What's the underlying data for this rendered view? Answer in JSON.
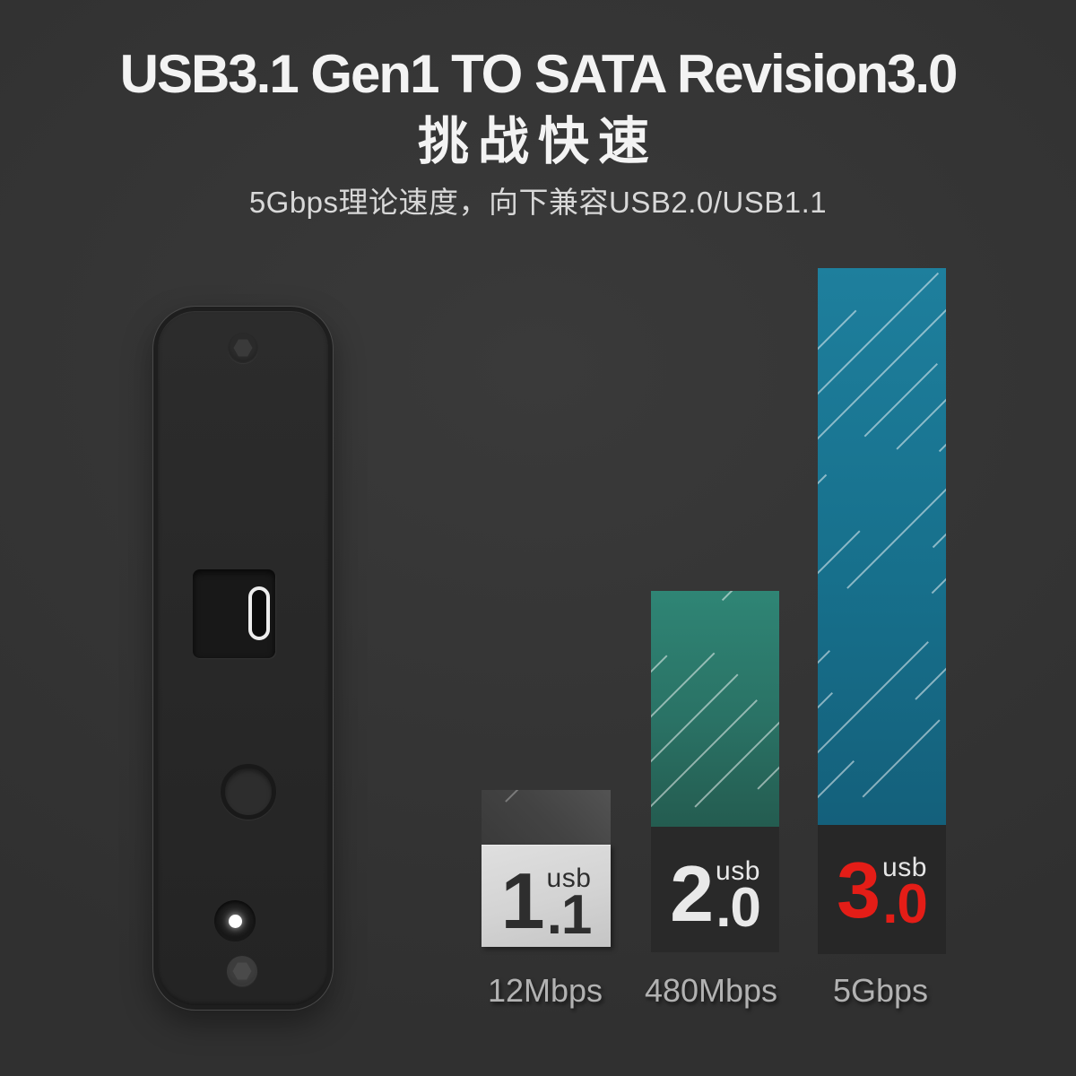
{
  "page": {
    "background_color": "#343434",
    "accent_red": "#e41d17",
    "bar_blue": "#17708c",
    "bar_green": "#2a7265"
  },
  "header": {
    "title": "USB3.1 Gen1 TO SATA Revision3.0",
    "subtitle": "挑战快速",
    "description": "5Gbps理论速度，向下兼容USB2.0/USB1.1"
  },
  "device": {
    "kind": "enclosure-back-panel",
    "features": [
      "screw-icon",
      "usb-c-port-icon",
      "power-button-icon",
      "led-indicator-icon",
      "screw-icon"
    ]
  },
  "chart_data": {
    "type": "bar",
    "title": "USB version speed comparison",
    "categories": [
      "usb 1.1",
      "usb 2.0",
      "usb 3.0"
    ],
    "values": [
      12,
      480,
      5000
    ],
    "value_unit": "Mbps",
    "value_labels": [
      "12Mbps",
      "480Mbps",
      "5Gbps"
    ],
    "bar_colors": [
      "#454545",
      "#2a7265",
      "#17708c"
    ],
    "hatch_style": "diagonal-dashed-lines",
    "legend_position": "none",
    "grid": false,
    "layout_hint": "bar heights are non-linear (approximately logarithmic emphasis); labels drawn inside boxes at bar bases",
    "bars": [
      {
        "prefix": "usb",
        "major": "1",
        "minor": ".1",
        "speed_label": "12Mbps",
        "number_color": "#2e2e2e",
        "box_color": "#d6d6d6"
      },
      {
        "prefix": "usb",
        "major": "2",
        "minor": ".0",
        "speed_label": "480Mbps",
        "number_color": "#e9e9e9",
        "box_color": "#292929"
      },
      {
        "prefix": "usb",
        "major": "3",
        "minor": ".0",
        "speed_label": "5Gbps",
        "number_color": "#e41d17",
        "box_color": "#272727"
      }
    ]
  }
}
